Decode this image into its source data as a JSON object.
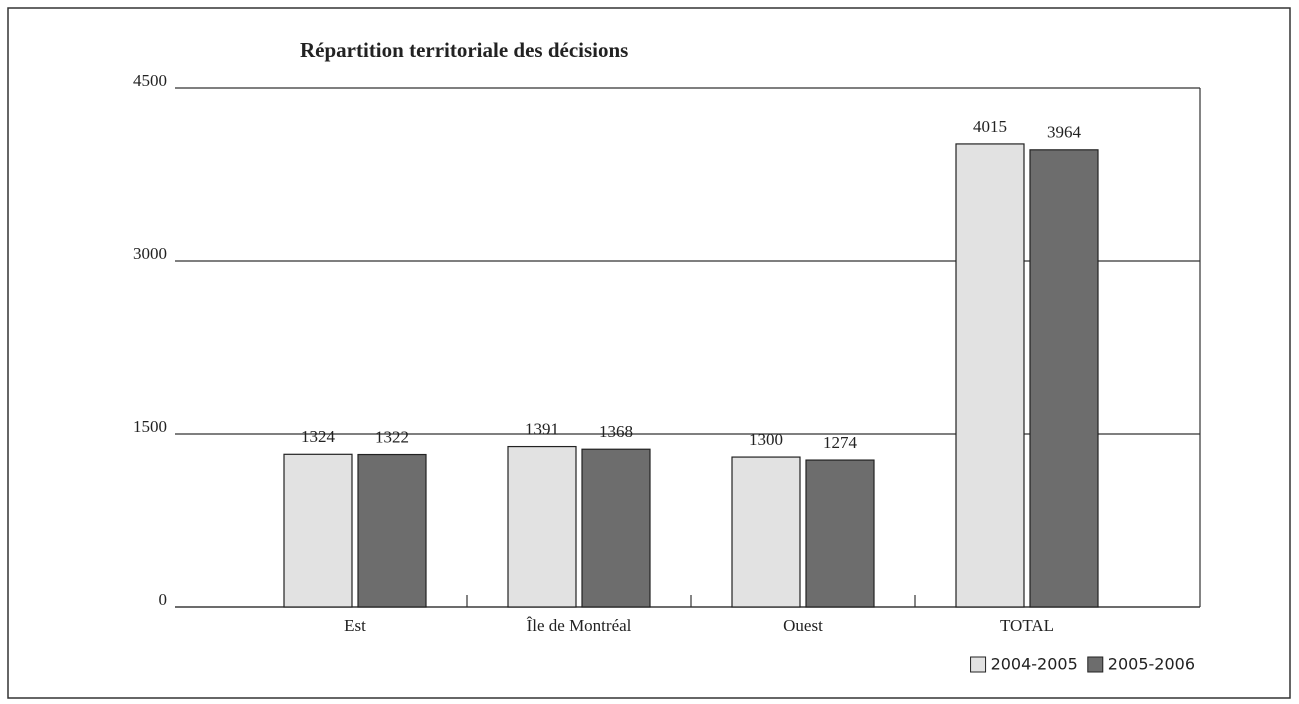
{
  "chart_data": {
    "type": "bar",
    "title": "Répartition territoriale des décisions",
    "categories": [
      "Est",
      "Île de Montréal",
      "Ouest",
      "TOTAL"
    ],
    "series": [
      {
        "name": "2004-2005",
        "color": "#e2e2e2",
        "values": [
          1324,
          1391,
          1300,
          4015
        ]
      },
      {
        "name": "2005-2006",
        "color": "#6d6d6d",
        "values": [
          1322,
          1368,
          1274,
          3964
        ]
      }
    ],
    "ylim": [
      0,
      4500
    ],
    "yticks": [
      0,
      1500,
      3000,
      4500
    ],
    "grid": true,
    "legend": "bottom-right"
  }
}
